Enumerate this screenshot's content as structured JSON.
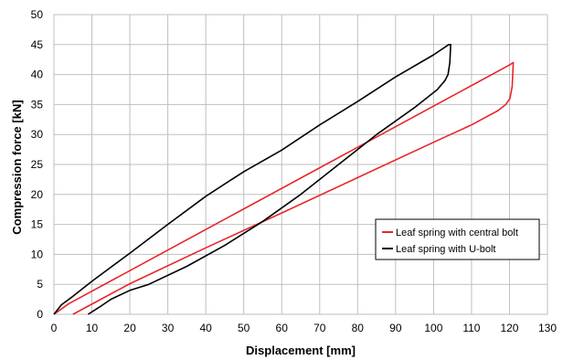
{
  "chart_data": {
    "type": "line",
    "xlabel": "Displacement [mm]",
    "ylabel": "Compression force [kN]",
    "xlim": [
      0,
      130
    ],
    "ylim": [
      0,
      50
    ],
    "x_ticks": [
      "0",
      "10",
      "20",
      "30",
      "40",
      "50",
      "60",
      "70",
      "80",
      "90",
      "100",
      "110",
      "120",
      "130"
    ],
    "y_ticks": [
      "0",
      "5",
      "10",
      "15",
      "20",
      "25",
      "30",
      "35",
      "40",
      "45",
      "50"
    ],
    "grid": true,
    "legend_position": "bottom-right",
    "series": [
      {
        "name": "Leaf spring with central bolt",
        "color": "#e8262a",
        "points": [
          [
            0,
            0
          ],
          [
            4,
            1.8
          ],
          [
            120,
            41.6
          ],
          [
            121,
            42
          ],
          [
            120.7,
            38
          ],
          [
            120.1,
            36
          ],
          [
            119,
            35
          ],
          [
            117,
            34
          ],
          [
            110,
            31.6
          ],
          [
            100,
            28.7
          ],
          [
            80,
            22.8
          ],
          [
            60,
            16.9
          ],
          [
            40,
            11.1
          ],
          [
            20,
            5.1
          ],
          [
            5,
            0
          ]
        ]
      },
      {
        "name": "Leaf spring with U-bolt",
        "color": "#000000",
        "points": [
          [
            0,
            0
          ],
          [
            2,
            1.6
          ],
          [
            5,
            3
          ],
          [
            10,
            5.5
          ],
          [
            20,
            10.2
          ],
          [
            30,
            15
          ],
          [
            40,
            19.7
          ],
          [
            50,
            23.8
          ],
          [
            60,
            27.4
          ],
          [
            70,
            31.6
          ],
          [
            80,
            35.5
          ],
          [
            90,
            39.6
          ],
          [
            100,
            43.3
          ],
          [
            104,
            45
          ],
          [
            104.5,
            45
          ],
          [
            104.3,
            42
          ],
          [
            103.8,
            40
          ],
          [
            103,
            39
          ],
          [
            101,
            37.5
          ],
          [
            95,
            34.5
          ],
          [
            85,
            30
          ],
          [
            75,
            25
          ],
          [
            65,
            20
          ],
          [
            55,
            15.5
          ],
          [
            45,
            11.5
          ],
          [
            35,
            8
          ],
          [
            25,
            5
          ],
          [
            20,
            4
          ],
          [
            15,
            2.5
          ],
          [
            12,
            1.2
          ],
          [
            9,
            0
          ]
        ]
      }
    ]
  }
}
